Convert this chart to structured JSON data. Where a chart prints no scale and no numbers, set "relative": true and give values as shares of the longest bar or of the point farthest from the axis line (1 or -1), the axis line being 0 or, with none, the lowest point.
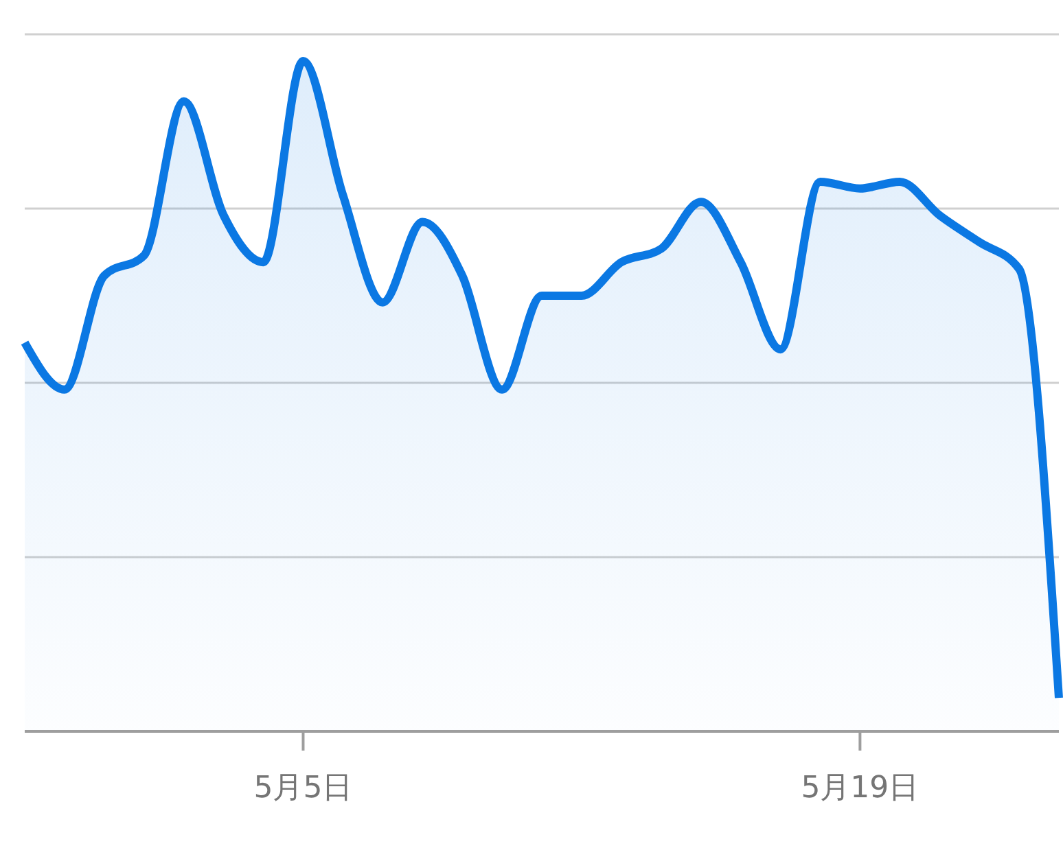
{
  "chart_data": {
    "type": "area",
    "relative": true,
    "grid": true,
    "marker": "none",
    "line_style": "solid",
    "categories": [
      null,
      null,
      null,
      null,
      null,
      null,
      null,
      "5月5日",
      null,
      null,
      null,
      null,
      null,
      null,
      null,
      null,
      null,
      null,
      null,
      null,
      null,
      "5月19日",
      null,
      null,
      null,
      null,
      null
    ],
    "series": [
      {
        "color": "#0b78e3",
        "values": [
          0.58,
          0.51,
          0.68,
          0.71,
          0.94,
          0.77,
          0.7,
          1,
          0.8,
          0.64,
          0.76,
          0.68,
          0.51,
          0.65,
          0.65,
          0.7,
          0.72,
          0.79,
          0.7,
          0.57,
          0.82,
          0.81,
          0.82,
          0.77,
          0.73,
          0.69,
          0.05
        ]
      }
    ]
  }
}
